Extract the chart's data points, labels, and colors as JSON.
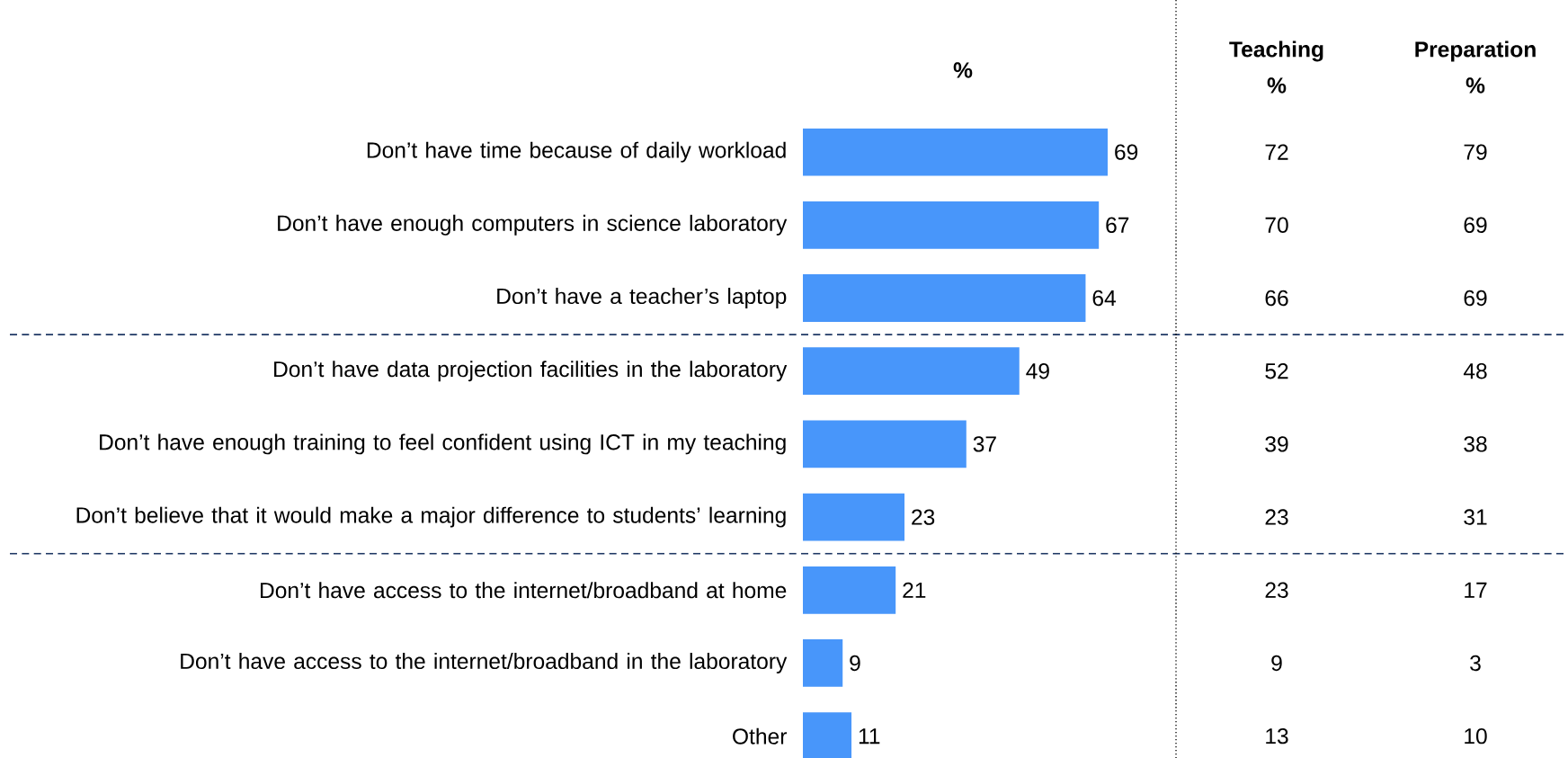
{
  "chart_data": [
    {
      "type": "bar",
      "orientation": "horizontal",
      "title": "%",
      "tick_labels": "y",
      "data_labels": true,
      "color": "#4896fa",
      "categories": [
        "Don’t have time because of daily workload",
        "Don’t have enough computers in science laboratory",
        "Don’t have a teacher’s laptop",
        "Don’t have data projection facilities in the laboratory",
        "Don’t have enough training to feel confident using ICT in my teaching",
        "Don’t believe that it would make a major difference to students’ learning",
        "Don’t have access to the internet/broadband at home",
        "Don’t have access to the internet/broadband in the laboratory",
        "Other"
      ],
      "values": [
        69,
        67,
        64,
        49,
        37,
        23,
        21,
        9,
        11
      ]
    },
    {
      "type": "other",
      "title": "Teaching",
      "subtitle": "%",
      "annotations": [
        "72",
        "70",
        "66",
        "52",
        "39",
        "23",
        "23",
        "9",
        "13"
      ]
    },
    {
      "type": "other",
      "title": "Preparation",
      "subtitle": "%",
      "annotations": [
        "79",
        "69",
        "69",
        "48",
        "38",
        "31",
        "17",
        "3",
        "10"
      ]
    }
  ]
}
